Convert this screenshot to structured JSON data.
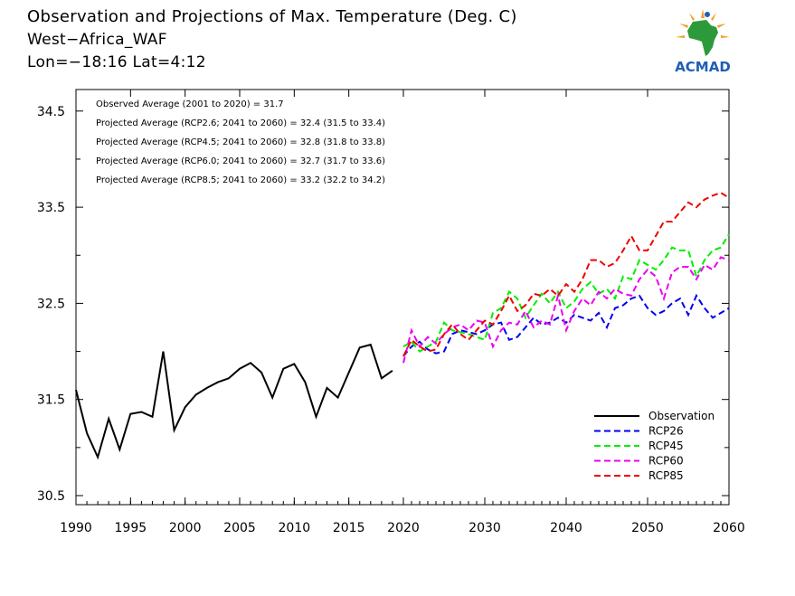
{
  "header": {
    "title": "Observation and Projections of Max. Temperature (Deg. C)",
    "region": "West−Africa_WAF",
    "coords": "Lon=−18:16  Lat=4:12"
  },
  "logo": {
    "text": "ACMAD",
    "color_blue": "#1f5fb0",
    "color_green": "#2d9a3a",
    "color_orange": "#f0a030"
  },
  "annotations": [
    "Observed Average (2001 to 2020) = 31.7",
    "Projected Average (RCP2.6; 2041 to 2060) = 32.4 (31.5 to 33.4)",
    "Projected Average (RCP4.5; 2041 to 2060) = 32.8 (31.8 to 33.8)",
    "Projected Average (RCP6.0; 2041 to 2060) = 32.7 (31.7 to 33.6)",
    "Projected Average (RCP8.5; 2041 to 2060) = 33.2 (32.2 to 34.2)"
  ],
  "chart_data": {
    "type": "line",
    "title": "Observation and Projections of Max. Temperature (Deg. C)",
    "xlabel": "",
    "ylabel": "",
    "x_ticks": [
      "1990",
      "1995",
      "2000",
      "2005",
      "2010",
      "2015",
      "2020",
      "2030",
      "2040",
      "2050",
      "2060"
    ],
    "y_ticks": [
      "30.5",
      "31.5",
      "32.5",
      "33.5",
      "34.5"
    ],
    "ylim": [
      30.4,
      34.75
    ],
    "legend_position": "bottom-right",
    "series": [
      {
        "name": "Observation",
        "color": "#000000",
        "style": "solid",
        "x": [
          1990,
          1991,
          1992,
          1993,
          1994,
          1995,
          1996,
          1997,
          1998,
          1999,
          2000,
          2001,
          2002,
          2003,
          2004,
          2005,
          2006,
          2007,
          2008,
          2009,
          2010,
          2011,
          2012,
          2013,
          2014,
          2015,
          2016,
          2017,
          2018,
          2019
        ],
        "values": [
          31.6,
          31.15,
          30.9,
          31.3,
          30.98,
          31.35,
          31.37,
          31.32,
          32.0,
          31.18,
          31.42,
          31.55,
          31.62,
          31.68,
          31.72,
          31.82,
          31.88,
          31.78,
          31.52,
          31.82,
          31.87,
          31.68,
          31.32,
          31.62,
          31.52,
          31.78,
          32.04,
          32.07,
          31.72,
          31.8
        ]
      },
      {
        "name": "RCP26",
        "color": "#0000ee",
        "style": "dashed",
        "x": [
          2020,
          2021,
          2022,
          2023,
          2024,
          2025,
          2026,
          2027,
          2028,
          2029,
          2030,
          2031,
          2032,
          2033,
          2034,
          2035,
          2036,
          2037,
          2038,
          2039,
          2040,
          2041,
          2042,
          2043,
          2044,
          2045,
          2046,
          2047,
          2048,
          2049,
          2050,
          2051,
          2052,
          2053,
          2054,
          2055,
          2056,
          2057,
          2058,
          2059,
          2060
        ],
        "values": [
          31.95,
          32.05,
          32.1,
          32.02,
          31.98,
          32.0,
          32.18,
          32.22,
          32.2,
          32.18,
          32.22,
          32.28,
          32.3,
          32.12,
          32.15,
          32.25,
          32.35,
          32.28,
          32.3,
          32.35,
          32.3,
          32.38,
          32.35,
          32.32,
          32.4,
          32.25,
          32.45,
          32.48,
          32.55,
          32.58,
          32.45,
          32.38,
          32.42,
          32.5,
          32.55,
          32.38,
          32.58,
          32.45,
          32.35,
          32.4,
          32.45
        ]
      },
      {
        "name": "RCP45",
        "color": "#00ee00",
        "style": "dashed",
        "x": [
          2020,
          2021,
          2022,
          2023,
          2024,
          2025,
          2026,
          2027,
          2028,
          2029,
          2030,
          2031,
          2032,
          2033,
          2034,
          2035,
          2036,
          2037,
          2038,
          2039,
          2040,
          2041,
          2042,
          2043,
          2044,
          2045,
          2046,
          2047,
          2048,
          2049,
          2050,
          2051,
          2052,
          2053,
          2054,
          2055,
          2056,
          2057,
          2058,
          2059,
          2060
        ],
        "values": [
          32.05,
          32.1,
          32.0,
          32.05,
          32.1,
          32.3,
          32.22,
          32.2,
          32.18,
          32.15,
          32.12,
          32.4,
          32.45,
          32.62,
          32.55,
          32.35,
          32.48,
          32.6,
          32.5,
          32.62,
          32.45,
          32.52,
          32.65,
          32.72,
          32.6,
          32.65,
          32.55,
          32.78,
          32.75,
          32.95,
          32.9,
          32.85,
          32.95,
          33.08,
          33.05,
          33.05,
          32.78,
          32.95,
          33.05,
          33.08,
          33.22
        ]
      },
      {
        "name": "RCP60",
        "color": "#ee00ee",
        "style": "dashed",
        "x": [
          2020,
          2021,
          2022,
          2023,
          2024,
          2025,
          2026,
          2027,
          2028,
          2029,
          2030,
          2031,
          2032,
          2033,
          2034,
          2035,
          2036,
          2037,
          2038,
          2039,
          2040,
          2041,
          2042,
          2043,
          2044,
          2045,
          2046,
          2047,
          2048,
          2049,
          2050,
          2051,
          2052,
          2053,
          2054,
          2055,
          2056,
          2057,
          2058,
          2059,
          2060
        ],
        "values": [
          31.88,
          32.22,
          32.05,
          32.15,
          32.08,
          32.18,
          32.25,
          32.28,
          32.22,
          32.32,
          32.3,
          32.05,
          32.22,
          32.3,
          32.28,
          32.42,
          32.25,
          32.32,
          32.28,
          32.58,
          32.22,
          32.42,
          32.55,
          32.48,
          32.62,
          32.55,
          32.65,
          32.6,
          32.58,
          32.75,
          32.85,
          32.78,
          32.55,
          32.82,
          32.88,
          32.88,
          32.75,
          32.9,
          32.85,
          32.98,
          32.95
        ]
      },
      {
        "name": "RCP85",
        "color": "#ee0000",
        "style": "dashed",
        "x": [
          2020,
          2021,
          2022,
          2023,
          2024,
          2025,
          2026,
          2027,
          2028,
          2029,
          2030,
          2031,
          2032,
          2033,
          2034,
          2035,
          2036,
          2037,
          2038,
          2039,
          2040,
          2041,
          2042,
          2043,
          2044,
          2045,
          2046,
          2047,
          2048,
          2049,
          2050,
          2051,
          2052,
          2053,
          2054,
          2055,
          2056,
          2057,
          2058,
          2059,
          2060
        ],
        "values": [
          31.95,
          32.12,
          32.05,
          32.0,
          32.02,
          32.18,
          32.28,
          32.18,
          32.12,
          32.22,
          32.32,
          32.28,
          32.42,
          32.58,
          32.42,
          32.48,
          32.6,
          32.58,
          32.65,
          32.58,
          32.7,
          32.62,
          32.75,
          32.95,
          32.95,
          32.88,
          32.92,
          33.05,
          33.2,
          33.05,
          33.05,
          33.2,
          33.35,
          33.35,
          33.45,
          33.55,
          33.5,
          33.58,
          33.62,
          33.65,
          33.6
        ]
      }
    ]
  }
}
